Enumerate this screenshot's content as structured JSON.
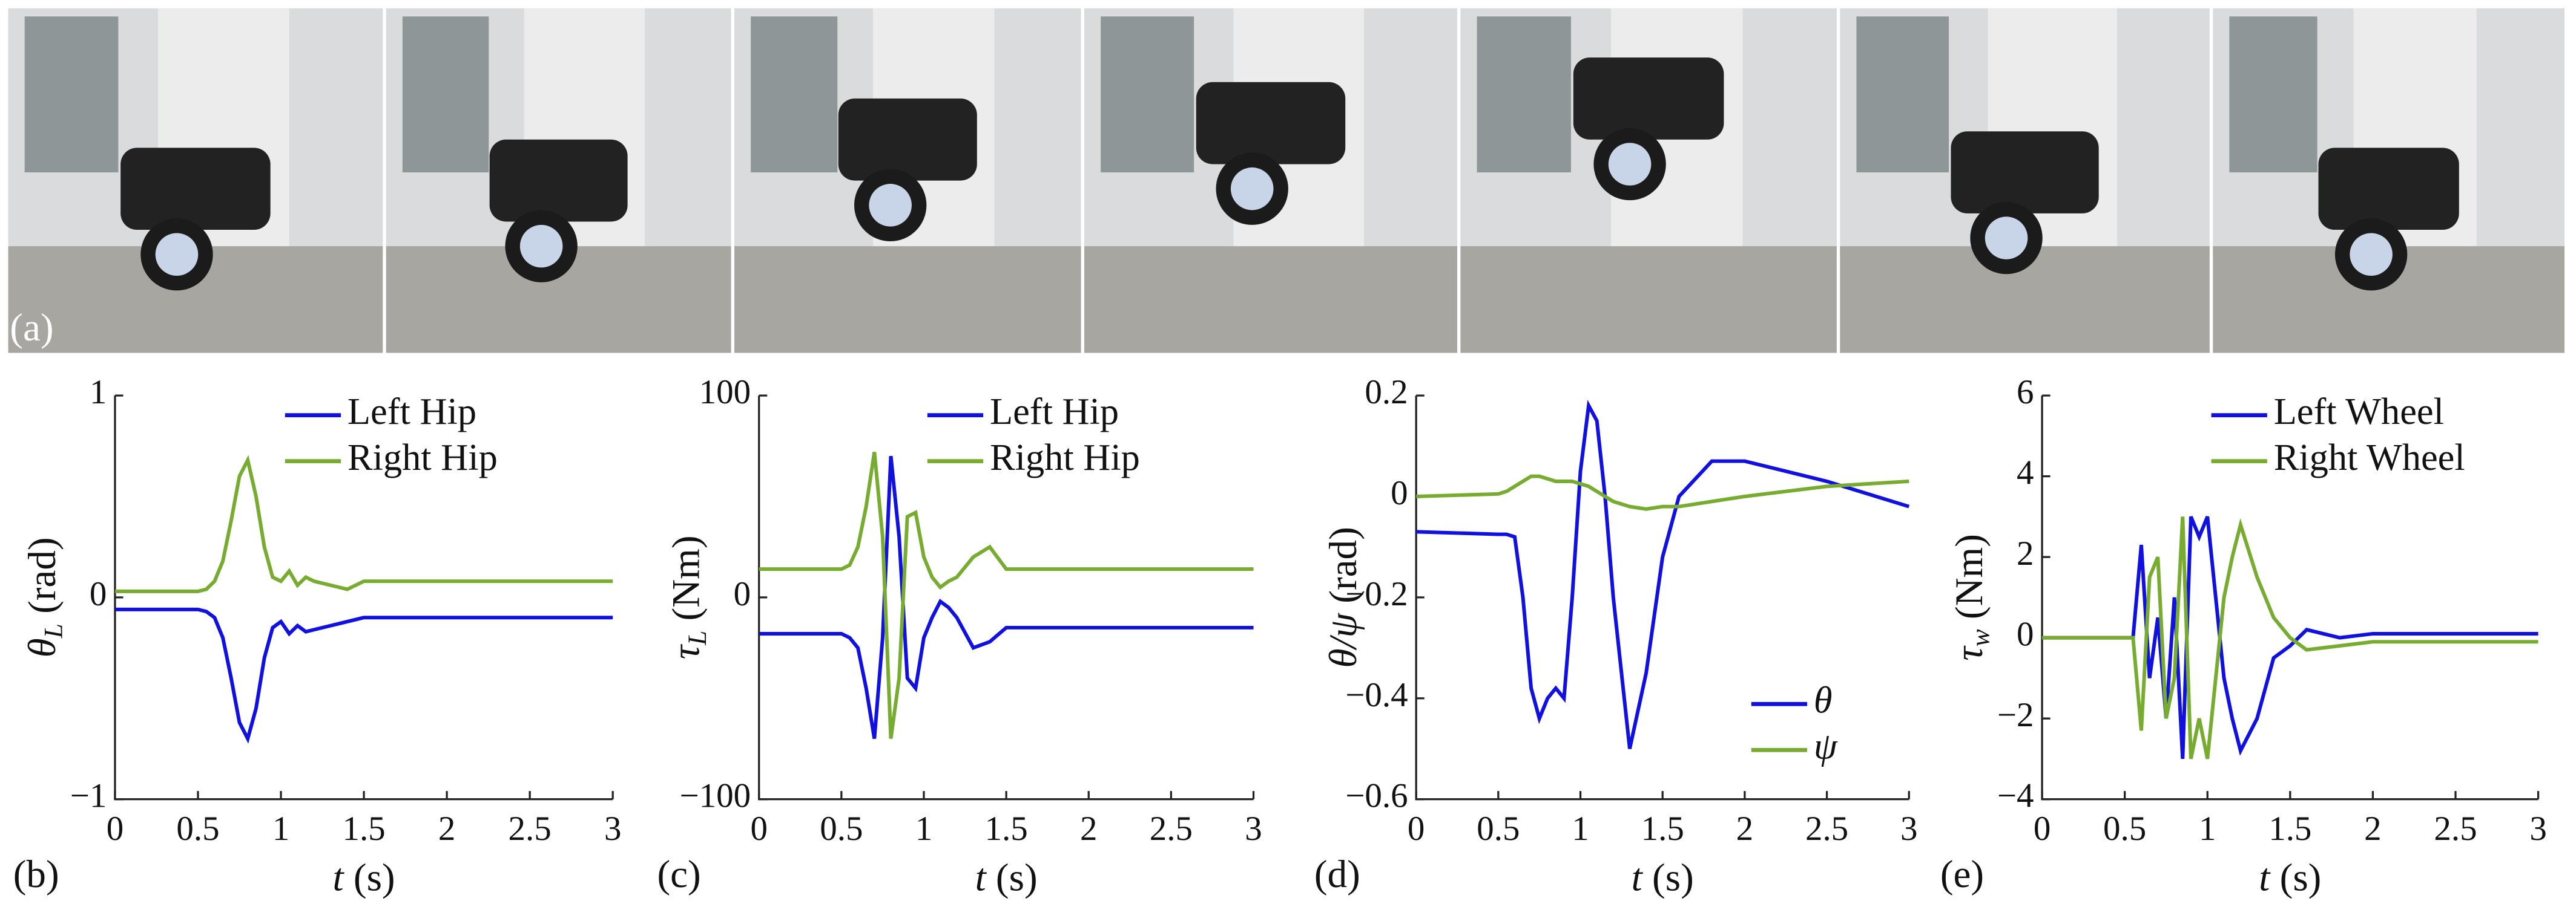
{
  "photo_strip": {
    "label": "(a)"
  },
  "chart_data": [
    {
      "type": "line",
      "panel_label": "(b)",
      "ylabel": {
        "symbol": "θ",
        "sub": "L",
        "unit": " (rad)"
      },
      "xlabel": {
        "symbol": "t",
        "unit": " (s)"
      },
      "x": [
        0,
        0.5,
        0.55,
        0.6,
        0.65,
        0.7,
        0.75,
        0.8,
        0.85,
        0.9,
        0.95,
        1.0,
        1.05,
        1.1,
        1.15,
        1.2,
        1.3,
        1.4,
        1.5,
        1.6,
        1.8,
        2,
        2.5,
        3
      ],
      "series": [
        {
          "name": "Left Hip",
          "color": "#1010e0",
          "values": [
            -0.06,
            -0.06,
            -0.07,
            -0.1,
            -0.2,
            -0.4,
            -0.62,
            -0.7,
            -0.55,
            -0.3,
            -0.15,
            -0.12,
            -0.18,
            -0.14,
            -0.17,
            -0.16,
            -0.14,
            -0.12,
            -0.1,
            -0.1,
            -0.1,
            -0.1,
            -0.1,
            -0.1
          ]
        },
        {
          "name": "Right Hip",
          "color": "#77ac30",
          "values": [
            0.03,
            0.03,
            0.04,
            0.08,
            0.18,
            0.38,
            0.6,
            0.68,
            0.5,
            0.25,
            0.1,
            0.08,
            0.13,
            0.06,
            0.1,
            0.08,
            0.06,
            0.04,
            0.08,
            0.08,
            0.08,
            0.08,
            0.08,
            0.08
          ]
        }
      ],
      "xlim": [
        0,
        3
      ],
      "xticks": [
        0,
        0.5,
        1,
        1.5,
        2,
        2.5,
        3
      ],
      "ylim": [
        -1,
        1
      ],
      "yticks": [
        {
          "value": -1,
          "label": "−1"
        },
        0,
        1
      ],
      "legend": "upper right"
    },
    {
      "type": "line",
      "panel_label": "(c)",
      "ylabel": {
        "symbol": "τ",
        "sub": "L",
        "unit": " (Nm)"
      },
      "xlabel": {
        "symbol": "t",
        "unit": " (s)"
      },
      "x": [
        0,
        0.5,
        0.55,
        0.6,
        0.65,
        0.7,
        0.75,
        0.8,
        0.85,
        0.9,
        0.95,
        1.0,
        1.05,
        1.1,
        1.15,
        1.2,
        1.3,
        1.4,
        1.5,
        1.6,
        1.8,
        2,
        2.5,
        3
      ],
      "series": [
        {
          "name": "Left Hip",
          "color": "#1010e0",
          "values": [
            -18,
            -18,
            -20,
            -25,
            -45,
            -70,
            -20,
            70,
            30,
            -40,
            -45,
            -20,
            -10,
            -2,
            -5,
            -10,
            -25,
            -22,
            -15,
            -15,
            -15,
            -15,
            -15,
            -15
          ]
        },
        {
          "name": "Right Hip",
          "color": "#77ac30",
          "values": [
            14,
            14,
            16,
            25,
            45,
            72,
            30,
            -70,
            -40,
            40,
            42,
            20,
            10,
            5,
            8,
            10,
            20,
            25,
            14,
            14,
            14,
            14,
            14,
            14
          ]
        }
      ],
      "xlim": [
        0,
        3
      ],
      "xticks": [
        0,
        0.5,
        1,
        1.5,
        2,
        2.5,
        3
      ],
      "ylim": [
        -100,
        100
      ],
      "yticks": [
        {
          "value": -100,
          "label": "−100"
        },
        0,
        100
      ],
      "legend": "upper right"
    },
    {
      "type": "line",
      "panel_label": "(d)",
      "ylabel": {
        "symbol": "θ/ψ",
        "sub": "",
        "unit": " (rad)"
      },
      "xlabel": {
        "symbol": "t",
        "unit": " (s)"
      },
      "x": [
        0,
        0.5,
        0.55,
        0.6,
        0.65,
        0.7,
        0.75,
        0.8,
        0.85,
        0.9,
        0.95,
        1.0,
        1.05,
        1.1,
        1.15,
        1.2,
        1.3,
        1.4,
        1.5,
        1.6,
        1.8,
        2,
        2.5,
        3
      ],
      "series": [
        {
          "name": "θ",
          "color": "#1010e0",
          "values": [
            -0.07,
            -0.075,
            -0.075,
            -0.08,
            -0.2,
            -0.38,
            -0.44,
            -0.4,
            -0.38,
            -0.4,
            -0.2,
            0.05,
            0.18,
            0.15,
            0.0,
            -0.2,
            -0.5,
            -0.35,
            -0.12,
            0.0,
            0.07,
            0.07,
            0.03,
            -0.02
          ]
        },
        {
          "name": "ψ",
          "color": "#77ac30",
          "values": [
            0,
            0.005,
            0.01,
            0.02,
            0.03,
            0.04,
            0.04,
            0.035,
            0.03,
            0.03,
            0.03,
            0.025,
            0.02,
            0.01,
            0.0,
            -0.01,
            -0.02,
            -0.025,
            -0.02,
            -0.02,
            -0.01,
            0.0,
            0.02,
            0.03
          ]
        }
      ],
      "xlim": [
        0,
        3
      ],
      "xticks": [
        0,
        0.5,
        1,
        1.5,
        2,
        2.5,
        3
      ],
      "ylim": [
        -0.6,
        0.2
      ],
      "yticks": [
        {
          "value": -0.6,
          "label": "−0.6"
        },
        {
          "value": -0.4,
          "label": "−0.4"
        },
        {
          "value": -0.2,
          "label": "−0.2"
        },
        0,
        0.2
      ],
      "legend": "lower right"
    },
    {
      "type": "line",
      "panel_label": "(e)",
      "ylabel": {
        "symbol": "τ",
        "sub": "w",
        "unit": " (Nm)"
      },
      "xlabel": {
        "symbol": "t",
        "unit": " (s)"
      },
      "x": [
        0,
        0.5,
        0.55,
        0.6,
        0.65,
        0.7,
        0.75,
        0.8,
        0.85,
        0.9,
        0.95,
        1.0,
        1.05,
        1.1,
        1.15,
        1.2,
        1.3,
        1.4,
        1.5,
        1.6,
        1.8,
        2,
        2.5,
        3
      ],
      "series": [
        {
          "name": "Left Wheel",
          "color": "#1010e0",
          "values": [
            0,
            0,
            0,
            2.3,
            -1,
            0.5,
            -2,
            1,
            -3,
            3,
            2.5,
            3,
            1,
            -1,
            -2,
            -2.8,
            -2,
            -0.5,
            -0.2,
            0.2,
            0,
            0.1,
            0.1,
            0.1
          ]
        },
        {
          "name": "Right Wheel",
          "color": "#77ac30",
          "values": [
            0,
            0,
            0,
            -2.3,
            1.5,
            2,
            -2,
            -1,
            3,
            -3,
            -2,
            -3,
            -1,
            1,
            2,
            2.8,
            1.5,
            0.5,
            0,
            -0.3,
            -0.2,
            -0.1,
            -0.1,
            -0.1
          ]
        }
      ],
      "xlim": [
        0,
        3
      ],
      "xticks": [
        0,
        0.5,
        1,
        1.5,
        2,
        2.5,
        3
      ],
      "ylim": [
        -4,
        6
      ],
      "yticks": [
        {
          "value": -4,
          "label": "−4"
        },
        {
          "value": -2,
          "label": "−2"
        },
        0,
        2,
        4,
        6
      ],
      "legend": "upper right"
    }
  ]
}
